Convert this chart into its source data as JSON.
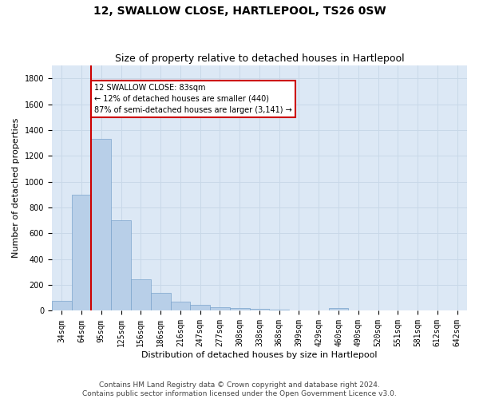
{
  "title": "12, SWALLOW CLOSE, HARTLEPOOL, TS26 0SW",
  "subtitle": "Size of property relative to detached houses in Hartlepool",
  "xlabel": "Distribution of detached houses by size in Hartlepool",
  "ylabel": "Number of detached properties",
  "footer_line1": "Contains HM Land Registry data © Crown copyright and database right 2024.",
  "footer_line2": "Contains public sector information licensed under the Open Government Licence v3.0.",
  "categories": [
    "34sqm",
    "64sqm",
    "95sqm",
    "125sqm",
    "156sqm",
    "186sqm",
    "216sqm",
    "247sqm",
    "277sqm",
    "308sqm",
    "338sqm",
    "368sqm",
    "399sqm",
    "429sqm",
    "460sqm",
    "490sqm",
    "520sqm",
    "551sqm",
    "581sqm",
    "612sqm",
    "642sqm"
  ],
  "values": [
    75,
    900,
    1330,
    700,
    245,
    140,
    70,
    45,
    25,
    20,
    15,
    10,
    5,
    0,
    20,
    0,
    0,
    0,
    0,
    0,
    0
  ],
  "bar_color": "#b8cfe8",
  "bar_edge_color": "#7ba3cc",
  "property_sqm": 83,
  "annotation_text_line1": "12 SWALLOW CLOSE: 83sqm",
  "annotation_text_line2": "← 12% of detached houses are smaller (440)",
  "annotation_text_line3": "87% of semi-detached houses are larger (3,141) →",
  "annotation_box_color": "#ffffff",
  "annotation_box_edge_color": "#cc0000",
  "red_line_color": "#cc0000",
  "ylim": [
    0,
    1900
  ],
  "yticks": [
    0,
    200,
    400,
    600,
    800,
    1000,
    1200,
    1400,
    1600,
    1800
  ],
  "grid_color": "#c8d8e8",
  "background_color": "#dce8f5",
  "title_fontsize": 10,
  "subtitle_fontsize": 9,
  "axis_label_fontsize": 8,
  "tick_fontsize": 7,
  "footer_fontsize": 6.5,
  "annotation_fontsize": 7
}
